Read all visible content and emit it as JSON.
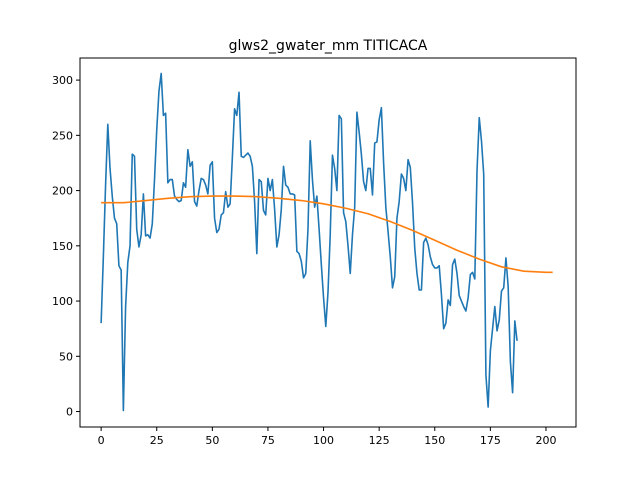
{
  "chart_data": {
    "type": "line",
    "title": "glws2_gwater_mm TITICACA",
    "xlabel": "",
    "ylabel": "",
    "xlim": [
      -9.5,
      213.5
    ],
    "ylim": [
      -14,
      320
    ],
    "grid": false,
    "x_ticks": [
      0,
      25,
      50,
      75,
      100,
      125,
      150,
      175,
      200
    ],
    "y_ticks": [
      0,
      50,
      100,
      150,
      200,
      250,
      300
    ],
    "series": [
      {
        "name": "",
        "color": "#1f77b4",
        "points": [
          [
            0,
            80
          ],
          [
            1,
            140
          ],
          [
            2,
            205
          ],
          [
            3,
            260
          ],
          [
            4,
            220
          ],
          [
            5,
            195
          ],
          [
            6,
            175
          ],
          [
            7,
            170
          ],
          [
            8,
            132
          ],
          [
            9,
            128
          ],
          [
            10,
            1
          ],
          [
            11,
            95
          ],
          [
            12,
            135
          ],
          [
            13,
            150
          ],
          [
            14,
            233
          ],
          [
            15,
            231
          ],
          [
            16,
            165
          ],
          [
            17,
            149
          ],
          [
            18,
            160
          ],
          [
            19,
            197
          ],
          [
            20,
            159
          ],
          [
            21,
            160
          ],
          [
            22,
            157
          ],
          [
            23,
            170
          ],
          [
            24,
            210
          ],
          [
            25,
            255
          ],
          [
            26,
            290
          ],
          [
            27,
            306
          ],
          [
            28,
            268
          ],
          [
            29,
            270
          ],
          [
            30,
            207
          ],
          [
            31,
            210
          ],
          [
            32,
            210
          ],
          [
            33,
            195
          ],
          [
            34,
            192
          ],
          [
            35,
            190
          ],
          [
            36,
            191
          ],
          [
            37,
            207
          ],
          [
            38,
            203
          ],
          [
            39,
            237
          ],
          [
            40,
            222
          ],
          [
            41,
            226
          ],
          [
            42,
            190
          ],
          [
            43,
            186
          ],
          [
            44,
            200
          ],
          [
            45,
            211
          ],
          [
            46,
            210
          ],
          [
            47,
            205
          ],
          [
            48,
            197
          ],
          [
            49,
            223
          ],
          [
            50,
            226
          ],
          [
            51,
            175
          ],
          [
            52,
            162
          ],
          [
            53,
            165
          ],
          [
            54,
            178
          ],
          [
            55,
            180
          ],
          [
            56,
            199
          ],
          [
            57,
            185
          ],
          [
            58,
            188
          ],
          [
            59,
            230
          ],
          [
            60,
            274
          ],
          [
            61,
            268
          ],
          [
            62,
            289
          ],
          [
            63,
            231
          ],
          [
            64,
            230
          ],
          [
            65,
            232
          ],
          [
            66,
            234
          ],
          [
            67,
            231
          ],
          [
            68,
            222
          ],
          [
            69,
            190
          ],
          [
            70,
            143
          ],
          [
            71,
            210
          ],
          [
            72,
            208
          ],
          [
            73,
            182
          ],
          [
            74,
            178
          ],
          [
            75,
            211
          ],
          [
            76,
            200
          ],
          [
            77,
            210
          ],
          [
            78,
            183
          ],
          [
            79,
            149
          ],
          [
            80,
            160
          ],
          [
            81,
            183
          ],
          [
            82,
            222
          ],
          [
            83,
            205
          ],
          [
            84,
            203
          ],
          [
            85,
            197
          ],
          [
            86,
            197
          ],
          [
            87,
            196
          ],
          [
            88,
            145
          ],
          [
            89,
            143
          ],
          [
            90,
            136
          ],
          [
            91,
            121
          ],
          [
            92,
            125
          ],
          [
            93,
            165
          ],
          [
            94,
            245
          ],
          [
            95,
            210
          ],
          [
            96,
            185
          ],
          [
            97,
            195
          ],
          [
            98,
            165
          ],
          [
            99,
            133
          ],
          [
            100,
            103
          ],
          [
            101,
            77
          ],
          [
            102,
            108
          ],
          [
            103,
            160
          ],
          [
            104,
            232
          ],
          [
            105,
            220
          ],
          [
            106,
            200
          ],
          [
            107,
            268
          ],
          [
            108,
            265
          ],
          [
            109,
            180
          ],
          [
            110,
            172
          ],
          [
            111,
            150
          ],
          [
            112,
            125
          ],
          [
            113,
            160
          ],
          [
            114,
            185
          ],
          [
            115,
            271
          ],
          [
            116,
            253
          ],
          [
            117,
            233
          ],
          [
            118,
            208
          ],
          [
            119,
            200
          ],
          [
            120,
            220
          ],
          [
            121,
            220
          ],
          [
            122,
            196
          ],
          [
            123,
            243
          ],
          [
            124,
            244
          ],
          [
            125,
            264
          ],
          [
            126,
            275
          ],
          [
            127,
            225
          ],
          [
            128,
            185
          ],
          [
            129,
            163
          ],
          [
            130,
            140
          ],
          [
            131,
            112
          ],
          [
            132,
            122
          ],
          [
            133,
            175
          ],
          [
            134,
            190
          ],
          [
            135,
            215
          ],
          [
            136,
            211
          ],
          [
            137,
            200
          ],
          [
            138,
            228
          ],
          [
            139,
            221
          ],
          [
            140,
            189
          ],
          [
            141,
            148
          ],
          [
            142,
            125
          ],
          [
            143,
            110
          ],
          [
            144,
            110
          ],
          [
            145,
            153
          ],
          [
            146,
            157
          ],
          [
            147,
            151
          ],
          [
            148,
            140
          ],
          [
            149,
            133
          ],
          [
            150,
            130
          ],
          [
            151,
            130
          ],
          [
            152,
            132
          ],
          [
            153,
            106
          ],
          [
            154,
            75
          ],
          [
            155,
            80
          ],
          [
            156,
            101
          ],
          [
            157,
            96
          ],
          [
            158,
            133
          ],
          [
            159,
            138
          ],
          [
            160,
            125
          ],
          [
            161,
            105
          ],
          [
            162,
            100
          ],
          [
            163,
            95
          ],
          [
            164,
            91
          ],
          [
            165,
            103
          ],
          [
            166,
            124
          ],
          [
            167,
            126
          ],
          [
            168,
            120
          ],
          [
            169,
            218
          ],
          [
            170,
            266
          ],
          [
            171,
            245
          ],
          [
            172,
            215
          ],
          [
            173,
            33
          ],
          [
            174,
            4
          ],
          [
            175,
            55
          ],
          [
            176,
            75
          ],
          [
            177,
            95
          ],
          [
            178,
            73
          ],
          [
            179,
            83
          ],
          [
            180,
            109
          ],
          [
            181,
            112
          ],
          [
            182,
            139
          ],
          [
            183,
            113
          ],
          [
            184,
            45
          ],
          [
            185,
            17
          ],
          [
            186,
            82
          ],
          [
            187,
            64
          ]
        ]
      },
      {
        "name": "",
        "color": "#ff7f0e",
        "points": [
          [
            0,
            189
          ],
          [
            10,
            189
          ],
          [
            20,
            191
          ],
          [
            30,
            193
          ],
          [
            40,
            194.5
          ],
          [
            50,
            195
          ],
          [
            60,
            195
          ],
          [
            70,
            194.5
          ],
          [
            80,
            193
          ],
          [
            90,
            191
          ],
          [
            100,
            188
          ],
          [
            110,
            184
          ],
          [
            120,
            179
          ],
          [
            130,
            172
          ],
          [
            140,
            164
          ],
          [
            150,
            155
          ],
          [
            160,
            146
          ],
          [
            170,
            138
          ],
          [
            180,
            131
          ],
          [
            190,
            127
          ],
          [
            200,
            126
          ],
          [
            203,
            126
          ]
        ]
      }
    ]
  }
}
